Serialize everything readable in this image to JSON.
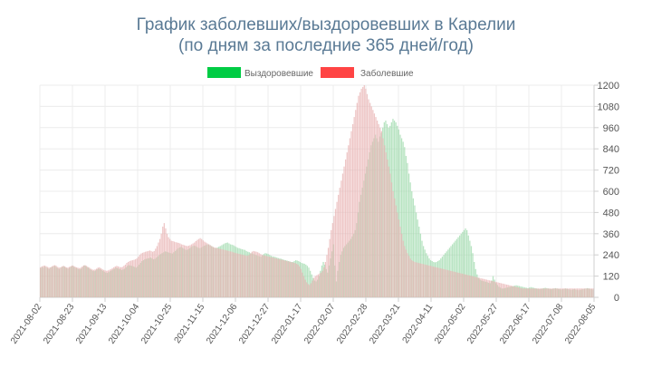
{
  "chart_data": {
    "type": "bar",
    "title": [
      "График заболевших/выздоровевших в Карелии",
      "(по дням за последние 365 дней/год)"
    ],
    "legend": {
      "placement": "top-center",
      "items": [
        {
          "label": "Выздоровевшие",
          "color": "#00cc44"
        },
        {
          "label": "Заболевшие",
          "color": "#ff4444"
        }
      ]
    },
    "y_axis": {
      "position": "right",
      "ylim": [
        0,
        1200
      ],
      "ticks": [
        0,
        120,
        240,
        360,
        480,
        600,
        720,
        840,
        960,
        1080,
        1200
      ]
    },
    "x_axis": {
      "ticks": [
        "2021-08-02",
        "2021-08-23",
        "2021-09-13",
        "2021-10-04",
        "2021-10-25",
        "2021-11-15",
        "2021-12-06",
        "2021-12-27",
        "2022-01-17",
        "2022-02-07",
        "2022-02-28",
        "2022-03-21",
        "2022-04-11",
        "2022-05-02",
        "2022-05-27",
        "2022-06-17",
        "2022-07-08",
        "2022-08-05"
      ]
    },
    "grid": true,
    "series": [
      {
        "name": "Выздоровевшие",
        "color": "#9ad8a8",
        "values": [
          165,
          172,
          168,
          175,
          170,
          165,
          160,
          168,
          172,
          175,
          178,
          170,
          165,
          160,
          168,
          172,
          176,
          170,
          165,
          162,
          168,
          174,
          178,
          172,
          168,
          165,
          160,
          158,
          162,
          170,
          180,
          178,
          172,
          168,
          160,
          155,
          150,
          148,
          152,
          158,
          162,
          160,
          155,
          150,
          145,
          140,
          138,
          142,
          148,
          152,
          158,
          162,
          168,
          165,
          162,
          160,
          155,
          158,
          162,
          170,
          178,
          182,
          180,
          178,
          175,
          172,
          168,
          175,
          185,
          195,
          205,
          210,
          215,
          218,
          220,
          222,
          225,
          220,
          215,
          218,
          225,
          232,
          240,
          245,
          250,
          255,
          260,
          258,
          255,
          252,
          250,
          248,
          255,
          262,
          270,
          278,
          282,
          285,
          280,
          275,
          270,
          268,
          272,
          278,
          285,
          290,
          292,
          290,
          285,
          280,
          278,
          282,
          288,
          292,
          295,
          298,
          300,
          295,
          290,
          285,
          280,
          278,
          282,
          286,
          290,
          295,
          300,
          305,
          308,
          310,
          305,
          300,
          298,
          295,
          290,
          285,
          280,
          278,
          275,
          272,
          270,
          268,
          262,
          258,
          255,
          250,
          248,
          245,
          240,
          238,
          235,
          232,
          230,
          238,
          245,
          250,
          248,
          245,
          240,
          235,
          232,
          230,
          228,
          225,
          222,
          220,
          218,
          215,
          212,
          210,
          208,
          205,
          203,
          200,
          200,
          205,
          210,
          208,
          205,
          200,
          195,
          192,
          190,
          185,
          178,
          168,
          150,
          130,
          110,
          95,
          90,
          100,
          120,
          150,
          180,
          200,
          185,
          160,
          140,
          180,
          220,
          260,
          300,
          180,
          90,
          150,
          200,
          240,
          260,
          280,
          290,
          300,
          310,
          320,
          330,
          345,
          360,
          380,
          420,
          480,
          540,
          580,
          620,
          660,
          700,
          740,
          780,
          820,
          860,
          880,
          900,
          920,
          900,
          880,
          910,
          930,
          960,
          990,
          1000,
          980,
          960,
          970,
          990,
          1010,
          1000,
          990,
          970,
          950,
          920,
          900,
          880,
          850,
          800,
          760,
          700,
          650,
          600,
          560,
          520,
          480,
          440,
          400,
          360,
          320,
          290,
          270,
          250,
          235,
          220,
          210,
          205,
          200,
          198,
          200,
          205,
          210,
          220,
          230,
          240,
          250,
          260,
          270,
          280,
          290,
          300,
          310,
          320,
          330,
          340,
          350,
          360,
          370,
          380,
          390,
          380,
          350,
          320,
          290,
          250,
          200,
          160,
          130,
          110,
          100,
          95,
          92,
          90,
          88,
          85,
          82,
          80,
          95,
          120,
          100,
          80,
          70,
          60,
          55,
          50,
          50,
          52,
          54,
          56,
          58,
          60,
          62,
          64,
          66,
          68,
          66,
          64,
          62,
          60,
          58,
          56,
          54,
          52,
          55,
          58,
          56,
          54,
          52,
          50,
          48,
          46,
          48,
          50,
          52,
          54,
          52,
          50,
          48,
          46,
          48,
          50,
          52,
          50,
          48,
          46,
          44,
          46,
          48,
          50,
          48,
          46,
          44,
          42,
          44,
          46,
          44,
          42,
          40,
          42,
          44,
          46,
          48,
          50,
          52,
          50,
          48,
          46,
          44
        ]
      },
      {
        "name": "Заболевшие",
        "color": "#e8b4b4",
        "values": [
          170,
          175,
          178,
          180,
          176,
          172,
          168,
          170,
          175,
          180,
          182,
          178,
          172,
          168,
          170,
          175,
          178,
          175,
          170,
          168,
          172,
          176,
          180,
          178,
          174,
          170,
          168,
          165,
          168,
          174,
          180,
          182,
          178,
          172,
          168,
          162,
          158,
          155,
          158,
          162,
          168,
          170,
          165,
          160,
          155,
          152,
          150,
          152,
          156,
          160,
          165,
          170,
          175,
          178,
          175,
          172,
          170,
          172,
          178,
          185,
          195,
          200,
          205,
          208,
          210,
          212,
          215,
          220,
          230,
          240,
          248,
          252,
          255,
          258,
          260,
          262,
          265,
          262,
          258,
          262,
          275,
          290,
          310,
          330,
          360,
          400,
          420,
          390,
          360,
          340,
          330,
          320,
          318,
          315,
          312,
          310,
          308,
          305,
          300,
          298,
          295,
          292,
          290,
          292,
          295,
          300,
          305,
          310,
          318,
          325,
          330,
          335,
          330,
          322,
          315,
          310,
          305,
          300,
          295,
          290,
          285,
          282,
          280,
          278,
          276,
          274,
          272,
          270,
          268,
          266,
          264,
          262,
          260,
          258,
          255,
          252,
          250,
          248,
          246,
          244,
          242,
          240,
          238,
          236,
          235,
          240,
          248,
          258,
          262,
          260,
          258,
          255,
          250,
          245,
          240,
          238,
          236,
          234,
          232,
          230,
          228,
          226,
          224,
          222,
          220,
          218,
          216,
          214,
          212,
          210,
          208,
          206,
          204,
          202,
          200,
          198,
          196,
          194,
          190,
          185,
          175,
          160,
          140,
          120,
          100,
          85,
          75,
          70,
          80,
          95,
          110,
          120,
          125,
          130,
          135,
          140,
          150,
          170,
          200,
          240,
          280,
          330,
          380,
          420,
          460,
          500,
          540,
          580,
          620,
          660,
          700,
          740,
          780,
          820,
          860,
          900,
          940,
          980,
          1020,
          1060,
          1100,
          1140,
          1160,
          1180,
          1190,
          1200,
          1180,
          1150,
          1120,
          1100,
          1080,
          1060,
          1040,
          1020,
          1000,
          980,
          960,
          940,
          900,
          860,
          820,
          780,
          740,
          700,
          650,
          600,
          560,
          520,
          480,
          440,
          400,
          360,
          320,
          290,
          270,
          250,
          235,
          220,
          210,
          205,
          200,
          198,
          196,
          194,
          192,
          190,
          188,
          186,
          184,
          182,
          180,
          178,
          176,
          174,
          172,
          170,
          168,
          166,
          164,
          162,
          160,
          158,
          156,
          154,
          152,
          150,
          148,
          146,
          144,
          142,
          140,
          138,
          136,
          134,
          132,
          130,
          128,
          126,
          124,
          122,
          120,
          118,
          116,
          114,
          112,
          110,
          108,
          106,
          104,
          102,
          100,
          98,
          96,
          94,
          92,
          90,
          88,
          86,
          84,
          82,
          80,
          78,
          76,
          74,
          72,
          70,
          68,
          66,
          64,
          62,
          60,
          58,
          56,
          54,
          52,
          50,
          50,
          50,
          50,
          50,
          50,
          50,
          50,
          50,
          50,
          50,
          50,
          50,
          50,
          50,
          50,
          50,
          50,
          50,
          50,
          50,
          50,
          50,
          50,
          50,
          50,
          50,
          50,
          50,
          50,
          50,
          50,
          50,
          50,
          50,
          50,
          50,
          50,
          50,
          50,
          50,
          50,
          50,
          50,
          50,
          50,
          50,
          50,
          50,
          50
        ]
      }
    ]
  }
}
